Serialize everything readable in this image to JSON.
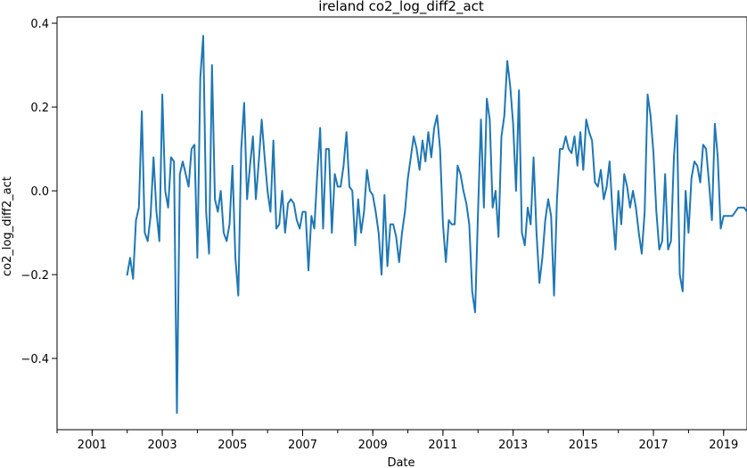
{
  "chart_data": {
    "type": "line",
    "title": "ireland co2_log_diff2_act",
    "xlabel": "Date",
    "ylabel": "co2_log_diff2_act",
    "x_tick_labels": [
      "2001",
      "2003",
      "2005",
      "2007",
      "2009",
      "2011",
      "2013",
      "2015",
      "2017",
      "2019"
    ],
    "y_tick_labels": [
      "−0.4",
      "−0.2",
      "0.0",
      "0.2",
      "0.4"
    ],
    "y_ticks": [
      -0.4,
      -0.2,
      0.0,
      0.2,
      0.4
    ],
    "xlim": [
      "2000-01",
      "2019-09"
    ],
    "ylim": [
      -0.57,
      0.415
    ],
    "grid": false,
    "color": "#1f77b4",
    "series": [
      {
        "x_start": "2002-01",
        "frequency": "monthly",
        "values": [
          -0.2,
          -0.16,
          -0.21,
          -0.07,
          -0.04,
          0.19,
          -0.1,
          -0.12,
          -0.06,
          0.08,
          -0.05,
          -0.12,
          0.23,
          0.0,
          -0.04,
          0.08,
          0.07,
          -0.53,
          0.04,
          0.07,
          0.04,
          0.01,
          0.1,
          0.11,
          -0.16,
          0.27,
          0.37,
          -0.05,
          -0.15,
          0.3,
          -0.02,
          -0.05,
          0.0,
          -0.1,
          -0.12,
          -0.08,
          0.06,
          -0.16,
          -0.25,
          0.1,
          0.21,
          -0.02,
          0.06,
          0.13,
          -0.02,
          0.07,
          0.17,
          0.08,
          0.0,
          -0.05,
          0.12,
          -0.09,
          -0.08,
          0.0,
          -0.1,
          -0.03,
          -0.02,
          -0.03,
          -0.07,
          -0.09,
          -0.05,
          -0.05,
          -0.19,
          -0.06,
          -0.09,
          0.04,
          0.15,
          -0.09,
          0.1,
          0.1,
          -0.1,
          0.04,
          0.01,
          0.01,
          0.06,
          0.14,
          0.01,
          0.0,
          -0.13,
          -0.02,
          -0.1,
          -0.05,
          0.05,
          0.0,
          -0.01,
          -0.05,
          -0.1,
          -0.2,
          -0.01,
          -0.18,
          -0.08,
          -0.08,
          -0.11,
          -0.17,
          -0.1,
          -0.05,
          0.03,
          0.08,
          0.13,
          0.1,
          0.05,
          0.12,
          0.07,
          0.14,
          0.08,
          0.15,
          0.18,
          0.1,
          -0.08,
          -0.17,
          -0.07,
          -0.08,
          -0.08,
          0.06,
          0.04,
          0.0,
          -0.03,
          -0.08,
          -0.24,
          -0.29,
          -0.05,
          0.17,
          -0.04,
          0.22,
          0.17,
          -0.04,
          0.0,
          -0.11,
          0.13,
          0.18,
          0.31,
          0.25,
          0.16,
          0.0,
          0.24,
          -0.1,
          -0.13,
          -0.04,
          -0.08,
          0.08,
          -0.1,
          -0.22,
          -0.16,
          -0.07,
          -0.02,
          -0.06,
          -0.25,
          -0.02,
          0.1,
          0.1,
          0.13,
          0.1,
          0.09,
          0.13,
          0.06,
          0.14,
          0.05,
          0.17,
          0.14,
          0.12,
          0.02,
          0.01,
          0.05,
          -0.02,
          0.01,
          0.07,
          -0.05,
          -0.14,
          0.0,
          -0.08,
          0.04,
          0.01,
          -0.04,
          0.0,
          -0.04,
          -0.1,
          -0.15,
          -0.05,
          0.23,
          0.18,
          0.09,
          -0.05,
          -0.14,
          -0.12,
          0.04,
          -0.14,
          -0.12,
          0.08,
          0.18,
          -0.2,
          -0.24,
          0.0,
          -0.1,
          0.03,
          0.07,
          0.06,
          0.02,
          0.11,
          0.1,
          0.02,
          -0.07,
          0.16,
          0.08,
          -0.09,
          -0.06,
          -0.06,
          -0.06,
          -0.06,
          -0.05,
          -0.04,
          -0.04,
          -0.04,
          -0.05
        ]
      }
    ]
  }
}
